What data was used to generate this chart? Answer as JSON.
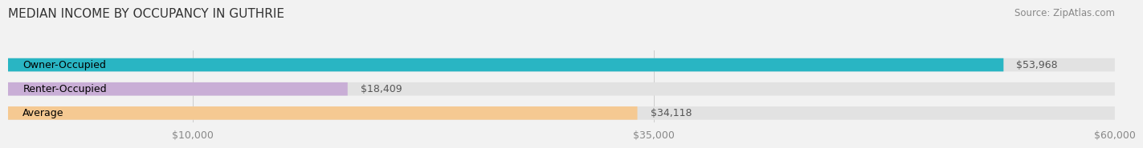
{
  "title": "MEDIAN INCOME BY OCCUPANCY IN GUTHRIE",
  "source": "Source: ZipAtlas.com",
  "categories": [
    "Owner-Occupied",
    "Renter-Occupied",
    "Average"
  ],
  "values": [
    53968,
    18409,
    34118
  ],
  "labels": [
    "$53,968",
    "$18,409",
    "$34,118"
  ],
  "bar_colors": [
    "#29b5c3",
    "#c9aed6",
    "#f5c992"
  ],
  "xlim": [
    0,
    60000
  ],
  "xticks": [
    10000,
    35000,
    60000
  ],
  "xticklabels": [
    "$10,000",
    "$35,000",
    "$60,000"
  ],
  "background_color": "#f2f2f2",
  "bar_background_color": "#e2e2e2",
  "title_fontsize": 11,
  "source_fontsize": 8.5,
  "tick_fontsize": 9,
  "label_fontsize": 9,
  "category_fontsize": 9
}
